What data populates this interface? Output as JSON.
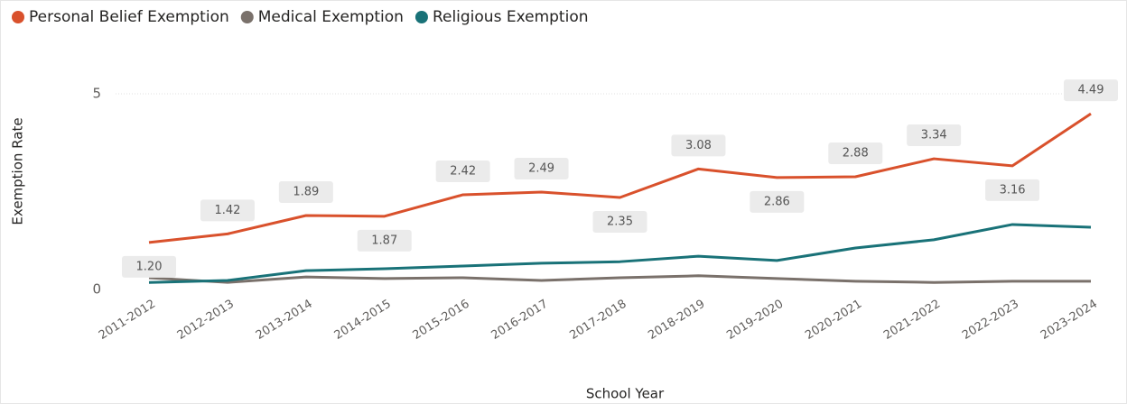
{
  "chart_data": {
    "type": "line",
    "x_label": "School Year",
    "y_label": "Exemption Rate",
    "categories": [
      "2011-2012",
      "2012-2013",
      "2013-2014",
      "2014-2015",
      "2015-2016",
      "2016-2017",
      "2017-2018",
      "2018-2019",
      "2019-2020",
      "2020-2021",
      "2021-2022",
      "2022-2023",
      "2023-2024"
    ],
    "series": [
      {
        "name": "Personal Belief Exemption",
        "color": "#d9512c",
        "values": [
          1.2,
          1.42,
          1.89,
          1.87,
          2.42,
          2.49,
          2.35,
          3.08,
          2.86,
          2.88,
          3.34,
          3.16,
          4.49
        ],
        "value_labels": [
          "1.20",
          "1.42",
          "1.89",
          "1.87",
          "2.42",
          "2.49",
          "2.35",
          "3.08",
          "2.86",
          "2.88",
          "3.34",
          "3.16",
          "4.49"
        ]
      },
      {
        "name": "Medical Exemption",
        "color": "#7a716b",
        "values": [
          0.3,
          0.18,
          0.32,
          0.28,
          0.3,
          0.23,
          0.3,
          0.35,
          0.28,
          0.21,
          0.18,
          0.21,
          0.21
        ]
      },
      {
        "name": "Religious Exemption",
        "color": "#197278",
        "values": [
          0.18,
          0.23,
          0.48,
          0.53,
          0.6,
          0.67,
          0.71,
          0.85,
          0.74,
          1.06,
          1.27,
          1.66,
          1.59
        ]
      }
    ],
    "ylim": [
      0,
      5.3
    ],
    "yticks": [
      0,
      5
    ],
    "grid": true,
    "legend": "top-left"
  }
}
